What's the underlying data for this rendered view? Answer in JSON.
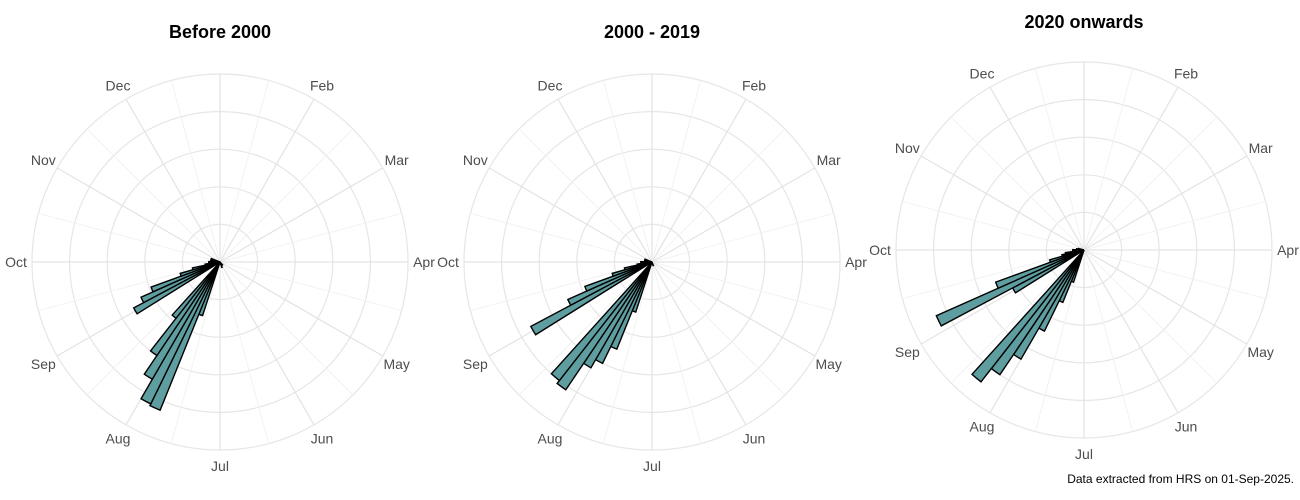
{
  "chart_data": [
    {
      "type": "bar",
      "coord": "polar",
      "title": "Before 2000",
      "bar_color": "#5f9ea0",
      "grid": true,
      "month_labels": [
        "Feb",
        "Mar",
        "Apr",
        "May",
        "Jun",
        "Jul",
        "Aug",
        "Sep",
        "Oct",
        "Nov",
        "Dec"
      ],
      "rings": 5,
      "rlim": [
        0,
        1
      ],
      "bins": [
        {
          "angle_deg": 200,
          "value": 0.3
        },
        {
          "angle_deg": 204,
          "value": 0.85
        },
        {
          "angle_deg": 208,
          "value": 0.84
        },
        {
          "angle_deg": 212,
          "value": 0.72
        },
        {
          "angle_deg": 216,
          "value": 0.6
        },
        {
          "angle_deg": 220,
          "value": 0.38
        },
        {
          "angle_deg": 240,
          "value": 0.52
        },
        {
          "angle_deg": 244,
          "value": 0.46
        },
        {
          "angle_deg": 248,
          "value": 0.39
        },
        {
          "angle_deg": 252,
          "value": 0.22
        },
        {
          "angle_deg": 256,
          "value": 0.15
        },
        {
          "angle_deg": 260,
          "value": 0.08
        },
        {
          "angle_deg": 270,
          "value": 0.06
        },
        {
          "angle_deg": 278,
          "value": 0.05
        },
        {
          "angle_deg": 284,
          "value": 0.04
        },
        {
          "angle_deg": 290,
          "value": 0.05
        },
        {
          "angle_deg": 140,
          "value": 0.02
        },
        {
          "angle_deg": 160,
          "value": 0.03
        }
      ]
    },
    {
      "type": "bar",
      "coord": "polar",
      "title": "2000 - 2019",
      "bar_color": "#5f9ea0",
      "grid": true,
      "month_labels": [
        "Feb",
        "Mar",
        "Apr",
        "May",
        "Jun",
        "Jul",
        "Aug",
        "Sep",
        "Oct",
        "Nov",
        "Dec"
      ],
      "rings": 5,
      "rlim": [
        0,
        1
      ],
      "bins": [
        {
          "angle_deg": 200,
          "value": 0.28
        },
        {
          "angle_deg": 204,
          "value": 0.5
        },
        {
          "angle_deg": 208,
          "value": 0.6
        },
        {
          "angle_deg": 212,
          "value": 0.65
        },
        {
          "angle_deg": 216,
          "value": 0.82
        },
        {
          "angle_deg": 220,
          "value": 0.8
        },
        {
          "angle_deg": 240,
          "value": 0.73
        },
        {
          "angle_deg": 244,
          "value": 0.49
        },
        {
          "angle_deg": 248,
          "value": 0.38
        },
        {
          "angle_deg": 252,
          "value": 0.22
        },
        {
          "angle_deg": 256,
          "value": 0.15
        },
        {
          "angle_deg": 260,
          "value": 0.08
        },
        {
          "angle_deg": 270,
          "value": 0.06
        },
        {
          "angle_deg": 278,
          "value": 0.04
        },
        {
          "angle_deg": 284,
          "value": 0.03
        },
        {
          "angle_deg": 290,
          "value": 0.04
        },
        {
          "angle_deg": 160,
          "value": 0.02
        }
      ]
    },
    {
      "type": "bar",
      "coord": "polar",
      "title": "2020 onwards",
      "bar_color": "#5f9ea0",
      "grid": true,
      "month_labels": [
        "Feb",
        "Mar",
        "Apr",
        "May",
        "Jun",
        "Jul",
        "Aug",
        "Sep",
        "Oct",
        "Nov",
        "Dec"
      ],
      "rings": 5,
      "rlim": [
        0,
        1
      ],
      "bins": [
        {
          "angle_deg": 200,
          "value": 0.18
        },
        {
          "angle_deg": 204,
          "value": 0.3
        },
        {
          "angle_deg": 208,
          "value": 0.48
        },
        {
          "angle_deg": 212,
          "value": 0.67
        },
        {
          "angle_deg": 216,
          "value": 0.8
        },
        {
          "angle_deg": 220,
          "value": 0.89
        },
        {
          "angle_deg": 240,
          "value": 0.43
        },
        {
          "angle_deg": 244,
          "value": 0.86
        },
        {
          "angle_deg": 248,
          "value": 0.5
        },
        {
          "angle_deg": 252,
          "value": 0.19
        },
        {
          "angle_deg": 256,
          "value": 0.12
        },
        {
          "angle_deg": 260,
          "value": 0.1
        },
        {
          "angle_deg": 270,
          "value": 0.06
        },
        {
          "angle_deg": 278,
          "value": 0.04
        },
        {
          "angle_deg": 284,
          "value": 0.03
        }
      ]
    }
  ],
  "caption": "Data extracted from HRS on 01-Sep-2025."
}
